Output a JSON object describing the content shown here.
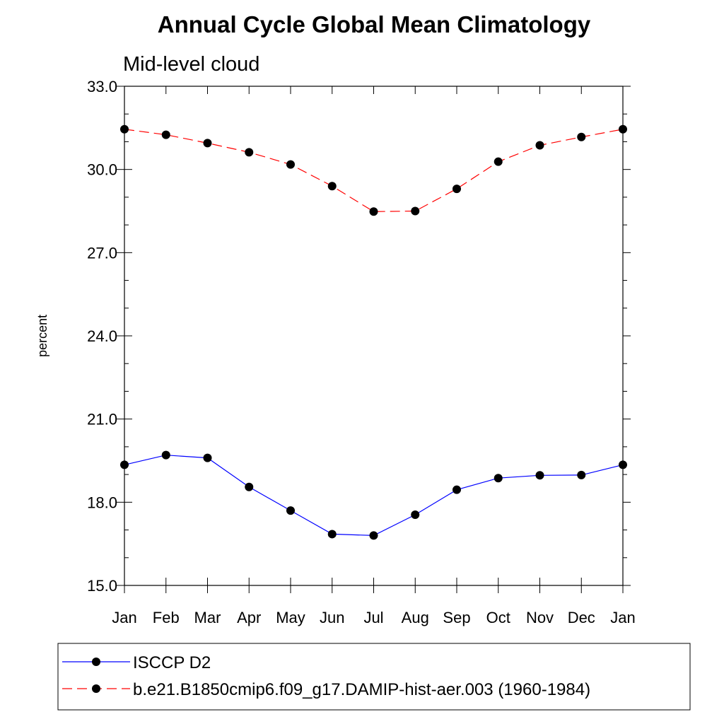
{
  "chart_data": {
    "type": "line",
    "title": "Annual Cycle Global Mean Climatology",
    "subtitle": "Mid-level cloud",
    "ylabel": "percent",
    "xlabel": "",
    "categories": [
      "Jan",
      "Feb",
      "Mar",
      "Apr",
      "May",
      "Jun",
      "Jul",
      "Aug",
      "Sep",
      "Oct",
      "Nov",
      "Dec",
      "Jan"
    ],
    "ylim": [
      15.0,
      33.0
    ],
    "yticks": [
      "15.0",
      "18.0",
      "21.0",
      "24.0",
      "27.0",
      "30.0",
      "33.0"
    ],
    "ytick_values": [
      15,
      18,
      21,
      24,
      27,
      30,
      33
    ],
    "y_minor_step": 1.0,
    "grid": false,
    "legend_position": "bottom",
    "series": [
      {
        "name": "ISCCP D2",
        "color": "#0000ff",
        "dash": "solid",
        "marker": "filled-circle",
        "values": [
          19.35,
          19.7,
          19.6,
          18.55,
          17.7,
          16.85,
          16.8,
          17.55,
          18.45,
          18.87,
          18.97,
          18.98,
          19.35
        ]
      },
      {
        "name": "b.e21.B1850cmip6.f09_g17.DAMIP-hist-aer.003 (1960-1984)",
        "color": "#ff0000",
        "dash": "dashed",
        "marker": "filled-circle",
        "values": [
          31.45,
          31.25,
          30.95,
          30.62,
          30.18,
          29.4,
          28.48,
          28.5,
          29.3,
          30.28,
          30.87,
          31.17,
          31.45
        ]
      }
    ]
  }
}
